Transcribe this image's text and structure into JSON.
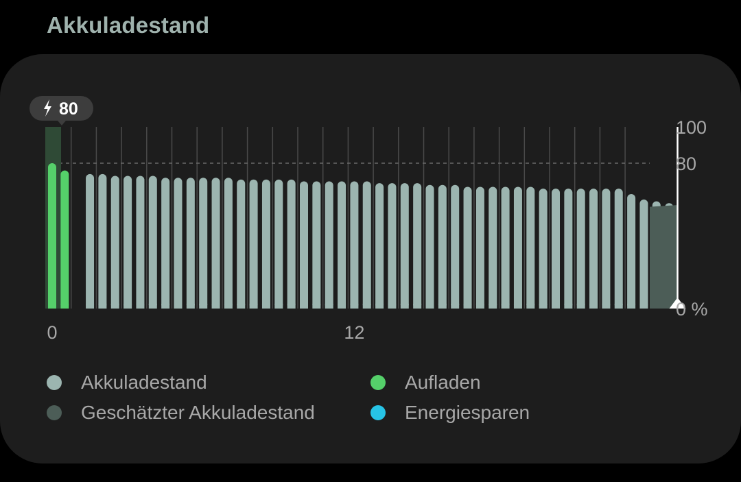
{
  "page": {
    "title": "Akkuladestand"
  },
  "colors": {
    "battery": "#9cb5b0",
    "charging": "#55d06a",
    "estimated": "#4c5d57",
    "power_saving": "#27c4e6",
    "grid": "#4a4a4a",
    "axis_text": "#a8a8a8"
  },
  "chart_data": {
    "type": "bar",
    "x_ticks": [
      {
        "value": 0,
        "label": "0"
      },
      {
        "value": 12,
        "label": "12"
      }
    ],
    "y_ticks": [
      {
        "value": 100,
        "label": "100"
      },
      {
        "value": 80,
        "label": "80"
      },
      {
        "value": 0,
        "label": "0 %"
      }
    ],
    "ylim": [
      0,
      100
    ],
    "reference_line": 80,
    "charge_badge": {
      "icon": "lightning-icon",
      "value": "80"
    },
    "charging_values": [
      80,
      76
    ],
    "battery_values": [
      74,
      74,
      73,
      73,
      73,
      73,
      72,
      72,
      72,
      72,
      72,
      72,
      71,
      71,
      71,
      71,
      71,
      70,
      70,
      70,
      70,
      70,
      70,
      69,
      69,
      69,
      69,
      68,
      68,
      68,
      67,
      67,
      67,
      67,
      67,
      67,
      66,
      66,
      66,
      66,
      66,
      66,
      66,
      63,
      60,
      59,
      58
    ],
    "estimated_values": [
      57,
      56
    ],
    "legend": [
      {
        "label": "Akkuladestand",
        "color": "#9cb5b0"
      },
      {
        "label": "Aufladen",
        "color": "#55d06a"
      },
      {
        "label": "Geschätzter Akkuladestand",
        "color": "#4c5d57"
      },
      {
        "label": "Energiesparen",
        "color": "#27c4e6"
      }
    ]
  }
}
